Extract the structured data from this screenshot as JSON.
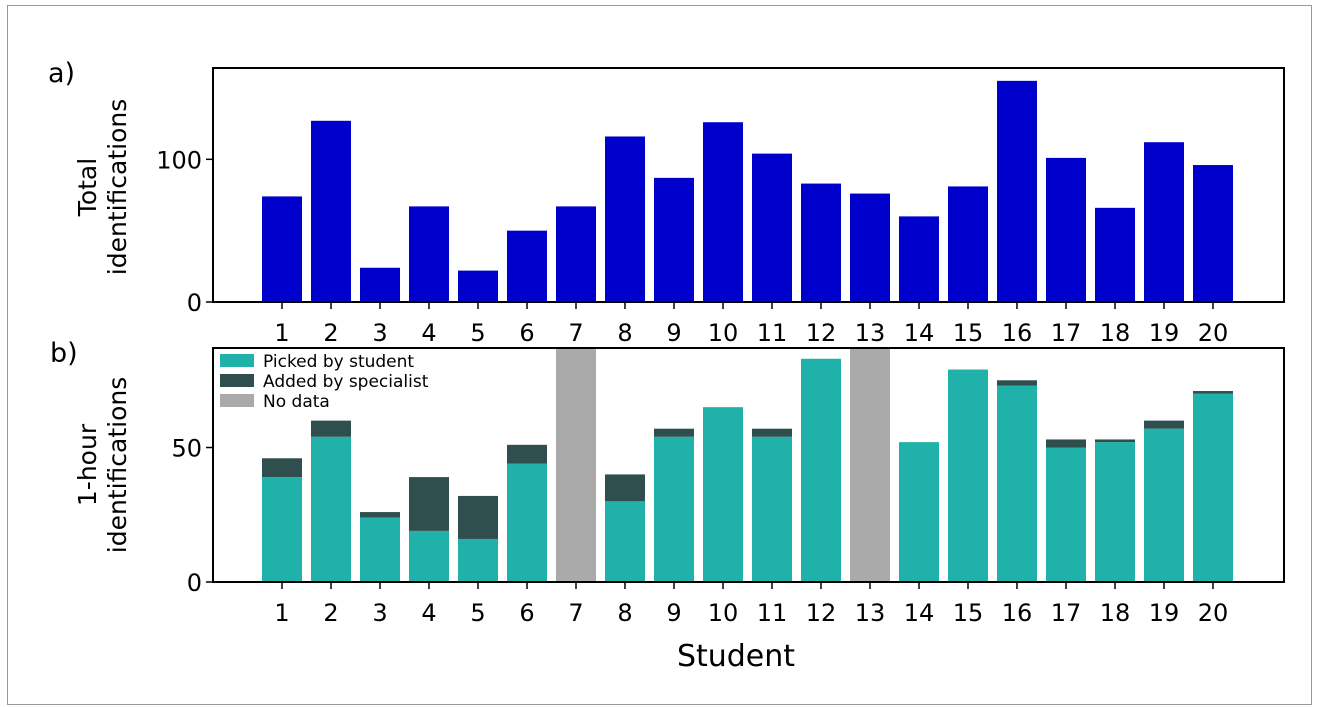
{
  "chart_data": [
    {
      "panel_label": "a)",
      "type": "bar",
      "categories": [
        "1",
        "2",
        "3",
        "4",
        "5",
        "6",
        "7",
        "8",
        "9",
        "10",
        "11",
        "12",
        "13",
        "14",
        "15",
        "16",
        "17",
        "18",
        "19",
        "20"
      ],
      "values": [
        74,
        127,
        24,
        67,
        22,
        50,
        67,
        116,
        87,
        126,
        104,
        83,
        76,
        60,
        81,
        155,
        101,
        66,
        112,
        96
      ],
      "ylabel": [
        "Total",
        "identifications"
      ],
      "ylim": [
        0,
        164
      ],
      "yticks": [
        0,
        100
      ],
      "grid": false,
      "colors": {
        "bars": "#0000cc"
      }
    },
    {
      "panel_label": "b)",
      "type": "bar",
      "stacked": true,
      "categories": [
        "1",
        "2",
        "3",
        "4",
        "5",
        "6",
        "7",
        "8",
        "9",
        "10",
        "11",
        "12",
        "13",
        "14",
        "15",
        "16",
        "17",
        "18",
        "19",
        "20"
      ],
      "series": [
        {
          "name": "Picked by student",
          "color": "#20b2aa",
          "values": [
            39,
            54,
            24,
            19,
            16,
            44,
            null,
            30,
            54,
            65,
            54,
            83,
            null,
            52,
            79,
            73,
            50,
            52,
            57,
            70
          ]
        },
        {
          "name": "Added by specialist",
          "color": "#2f4f4f",
          "values": [
            7,
            6,
            2,
            20,
            16,
            7,
            null,
            10,
            3,
            0,
            3,
            0,
            null,
            0,
            0,
            2,
            3,
            1,
            3,
            1
          ]
        }
      ],
      "no_data": {
        "name": "No data",
        "color": "#aaaaaa",
        "categories": [
          "7",
          "13"
        ]
      },
      "xlabel": "Student",
      "ylabel": [
        "1-hour",
        "identifications"
      ],
      "ylim": [
        0,
        87
      ],
      "yticks": [
        0,
        50
      ],
      "grid": false,
      "legend_position": "top-left"
    }
  ]
}
